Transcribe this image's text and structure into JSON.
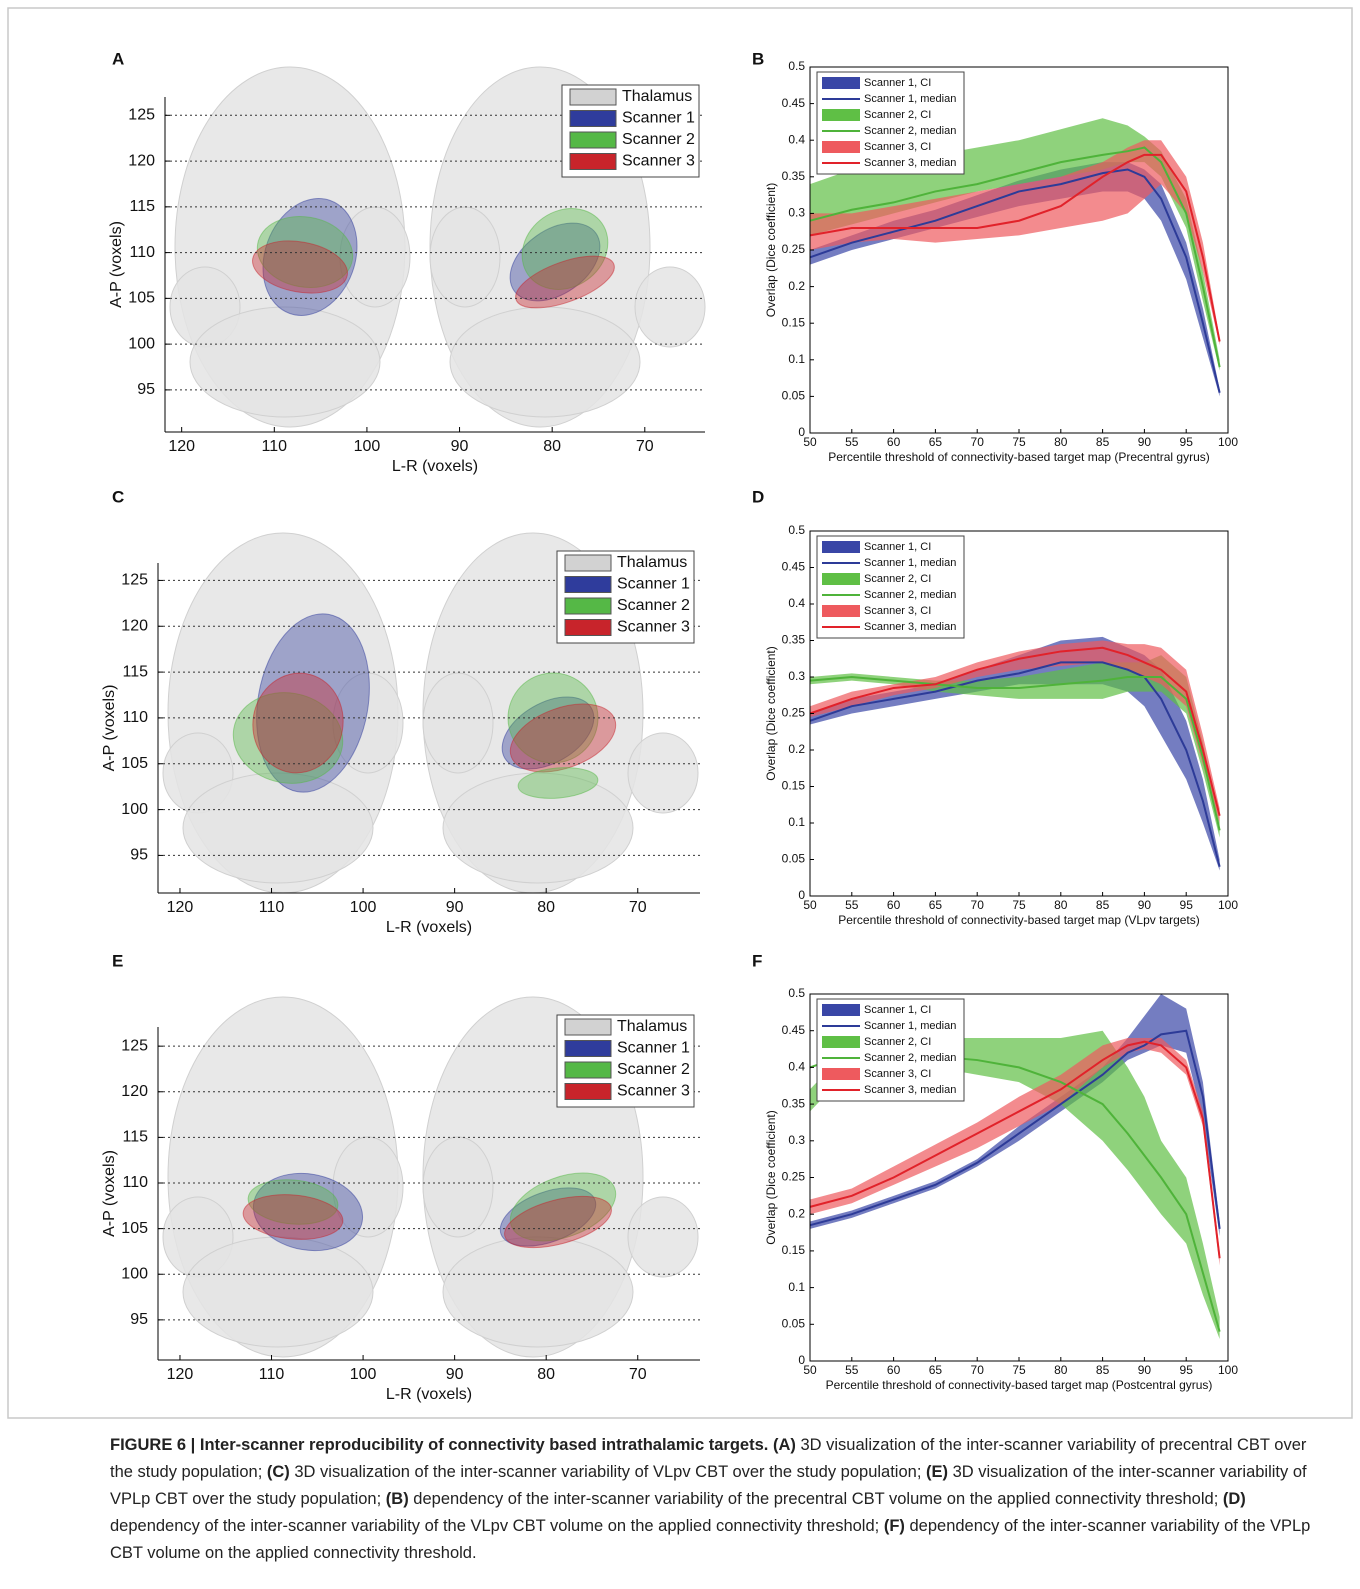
{
  "chart_data": [
    {
      "type": "image",
      "panel": "A",
      "xlabel": "L-R (voxels)",
      "ylabel": "A-P (voxels)",
      "xlim": [
        121.8,
        63.5
      ],
      "ylim": [
        90.4,
        127
      ],
      "xticks": [
        120,
        110,
        100,
        90,
        80,
        70
      ],
      "yticks": [
        95,
        100,
        105,
        110,
        115,
        120,
        125
      ],
      "grid": true,
      "legend_loc": "upper right",
      "series": [
        {
          "name": "Thalamus",
          "color": "#d2d2d2"
        },
        {
          "name": "Scanner 1",
          "color": "#2f3c9c"
        },
        {
          "name": "Scanner 2",
          "color": "#55b846"
        },
        {
          "name": "Scanner 3",
          "color": "#c8242b"
        }
      ]
    },
    {
      "type": "line",
      "panel": "B",
      "xlabel": "Percentile threshold of connectivity-based target map (Precentral gyrus)",
      "ylabel": "Overlap (Dice coefficient)",
      "xlim": [
        50,
        100
      ],
      "ylim": [
        0,
        0.5
      ],
      "xticks": [
        50,
        55,
        60,
        65,
        70,
        75,
        80,
        85,
        90,
        95,
        100
      ],
      "yticks": [
        0,
        0.05,
        0.1,
        0.15,
        0.2,
        0.25,
        0.3,
        0.35,
        0.4,
        0.45,
        0.5
      ],
      "legend_loc": "upper left",
      "x": [
        50,
        55,
        60,
        65,
        70,
        75,
        80,
        85,
        88,
        90,
        92,
        95,
        97,
        99
      ],
      "series": [
        {
          "name": "Scanner 1, CI",
          "color": "#3946a6",
          "lower": [
            0.23,
            0.25,
            0.265,
            0.28,
            0.295,
            0.31,
            0.32,
            0.33,
            0.33,
            0.32,
            0.29,
            0.21,
            0.13,
            0.05
          ],
          "upper": [
            0.25,
            0.27,
            0.29,
            0.305,
            0.325,
            0.345,
            0.36,
            0.37,
            0.37,
            0.36,
            0.34,
            0.26,
            0.17,
            0.06
          ]
        },
        {
          "name": "Scanner 1, median",
          "color": "#2d3b98",
          "values": [
            0.24,
            0.26,
            0.275,
            0.29,
            0.31,
            0.33,
            0.34,
            0.355,
            0.36,
            0.35,
            0.32,
            0.24,
            0.15,
            0.055
          ]
        },
        {
          "name": "Scanner 2, CI",
          "color": "#5fbf45",
          "lower": [
            0.27,
            0.285,
            0.3,
            0.315,
            0.33,
            0.34,
            0.35,
            0.36,
            0.37,
            0.37,
            0.35,
            0.28,
            0.18,
            0.085
          ],
          "upper": [
            0.34,
            0.36,
            0.37,
            0.38,
            0.39,
            0.4,
            0.415,
            0.43,
            0.42,
            0.405,
            0.385,
            0.32,
            0.22,
            0.1
          ]
        },
        {
          "name": "Scanner 2, median",
          "color": "#4fb33a",
          "values": [
            0.29,
            0.305,
            0.315,
            0.33,
            0.34,
            0.355,
            0.37,
            0.38,
            0.385,
            0.39,
            0.37,
            0.3,
            0.2,
            0.09
          ]
        },
        {
          "name": "Scanner 3, CI",
          "color": "#ee5a5e",
          "lower": [
            0.25,
            0.26,
            0.265,
            0.26,
            0.265,
            0.27,
            0.28,
            0.29,
            0.3,
            0.32,
            0.34,
            0.3,
            0.22,
            0.12
          ],
          "upper": [
            0.3,
            0.3,
            0.31,
            0.32,
            0.33,
            0.34,
            0.35,
            0.37,
            0.39,
            0.4,
            0.4,
            0.35,
            0.26,
            0.13
          ]
        },
        {
          "name": "Scanner 3, median",
          "color": "#e1222a",
          "values": [
            0.27,
            0.28,
            0.28,
            0.28,
            0.28,
            0.29,
            0.31,
            0.35,
            0.37,
            0.38,
            0.38,
            0.33,
            0.24,
            0.125
          ]
        }
      ]
    },
    {
      "type": "image",
      "panel": "C",
      "xlabel": "L-R (voxels)",
      "ylabel": "A-P (voxels)",
      "xlim": [
        122.4,
        63.2
      ],
      "ylim": [
        90.9,
        126.9
      ],
      "xticks": [
        120,
        110,
        100,
        90,
        80,
        70
      ],
      "yticks": [
        95,
        100,
        105,
        110,
        115,
        120,
        125
      ],
      "grid": true,
      "legend_loc": "upper right",
      "series": [
        {
          "name": "Thalamus",
          "color": "#d2d2d2"
        },
        {
          "name": "Scanner 1",
          "color": "#2f3c9c"
        },
        {
          "name": "Scanner 2",
          "color": "#55b846"
        },
        {
          "name": "Scanner 3",
          "color": "#c8242b"
        }
      ]
    },
    {
      "type": "line",
      "panel": "D",
      "xlabel": "Percentile threshold of connectivity-based target map (VLpv targets)",
      "ylabel": "Overlap (Dice coefficient)",
      "xlim": [
        50,
        100
      ],
      "ylim": [
        0,
        0.5
      ],
      "xticks": [
        50,
        55,
        60,
        65,
        70,
        75,
        80,
        85,
        90,
        95,
        100
      ],
      "yticks": [
        0,
        0.05,
        0.1,
        0.15,
        0.2,
        0.25,
        0.3,
        0.35,
        0.4,
        0.45,
        0.5
      ],
      "legend_loc": "upper left",
      "x": [
        50,
        55,
        60,
        65,
        70,
        75,
        80,
        85,
        88,
        90,
        92,
        95,
        97,
        99
      ],
      "series": [
        {
          "name": "Scanner 1, CI",
          "color": "#3946a6",
          "lower": [
            0.235,
            0.25,
            0.26,
            0.27,
            0.28,
            0.29,
            0.29,
            0.29,
            0.28,
            0.26,
            0.22,
            0.16,
            0.1,
            0.035
          ],
          "upper": [
            0.25,
            0.27,
            0.28,
            0.29,
            0.31,
            0.33,
            0.35,
            0.355,
            0.34,
            0.33,
            0.31,
            0.24,
            0.16,
            0.05
          ]
        },
        {
          "name": "Scanner 1, median",
          "color": "#2d3b98",
          "values": [
            0.24,
            0.26,
            0.27,
            0.28,
            0.295,
            0.305,
            0.32,
            0.32,
            0.31,
            0.3,
            0.27,
            0.2,
            0.13,
            0.04
          ]
        },
        {
          "name": "Scanner 2, CI",
          "color": "#5fbf45",
          "lower": [
            0.29,
            0.295,
            0.29,
            0.28,
            0.275,
            0.27,
            0.27,
            0.27,
            0.28,
            0.28,
            0.28,
            0.25,
            0.17,
            0.08
          ],
          "upper": [
            0.3,
            0.305,
            0.3,
            0.295,
            0.295,
            0.3,
            0.31,
            0.32,
            0.32,
            0.32,
            0.33,
            0.3,
            0.21,
            0.1
          ]
        },
        {
          "name": "Scanner 2, median",
          "color": "#4fb33a",
          "values": [
            0.295,
            0.3,
            0.295,
            0.29,
            0.285,
            0.285,
            0.29,
            0.295,
            0.3,
            0.3,
            0.3,
            0.27,
            0.19,
            0.09
          ]
        },
        {
          "name": "Scanner 3, CI",
          "color": "#ee5a5e",
          "lower": [
            0.245,
            0.26,
            0.275,
            0.285,
            0.3,
            0.31,
            0.315,
            0.32,
            0.31,
            0.3,
            0.29,
            0.26,
            0.18,
            0.1
          ],
          "upper": [
            0.26,
            0.28,
            0.29,
            0.3,
            0.32,
            0.335,
            0.345,
            0.35,
            0.345,
            0.345,
            0.34,
            0.31,
            0.22,
            0.12
          ]
        },
        {
          "name": "Scanner 3, median",
          "color": "#e1222a",
          "values": [
            0.25,
            0.27,
            0.285,
            0.29,
            0.31,
            0.325,
            0.335,
            0.34,
            0.33,
            0.32,
            0.31,
            0.28,
            0.2,
            0.11
          ]
        }
      ]
    },
    {
      "type": "image",
      "panel": "E",
      "xlabel": "L-R (voxels)",
      "ylabel": "A-P (voxels)",
      "xlim": [
        122.4,
        63.2
      ],
      "ylim": [
        90.6,
        127.1
      ],
      "xticks": [
        120,
        110,
        100,
        90,
        80,
        70
      ],
      "yticks": [
        95,
        100,
        105,
        110,
        115,
        120,
        125
      ],
      "grid": true,
      "legend_loc": "upper right",
      "series": [
        {
          "name": "Thalamus",
          "color": "#d2d2d2"
        },
        {
          "name": "Scanner 1",
          "color": "#2f3c9c"
        },
        {
          "name": "Scanner 2",
          "color": "#55b846"
        },
        {
          "name": "Scanner 3",
          "color": "#c8242b"
        }
      ]
    },
    {
      "type": "line",
      "panel": "F",
      "xlabel": "Percentile threshold of connectivity-based target map (Postcentral gyrus)",
      "ylabel": "Overlap (Dice coefficient)",
      "xlim": [
        50,
        100
      ],
      "ylim": [
        0,
        0.5
      ],
      "xticks": [
        50,
        55,
        60,
        65,
        70,
        75,
        80,
        85,
        90,
        95,
        100
      ],
      "yticks": [
        0,
        0.05,
        0.1,
        0.15,
        0.2,
        0.25,
        0.3,
        0.35,
        0.4,
        0.45,
        0.5
      ],
      "legend_loc": "upper left",
      "x": [
        50,
        55,
        60,
        65,
        70,
        75,
        80,
        85,
        88,
        90,
        92,
        95,
        97,
        99
      ],
      "series": [
        {
          "name": "Scanner 1, CI",
          "color": "#3946a6",
          "lower": [
            0.18,
            0.195,
            0.215,
            0.235,
            0.265,
            0.3,
            0.34,
            0.38,
            0.41,
            0.42,
            0.43,
            0.42,
            0.33,
            0.17
          ],
          "upper": [
            0.19,
            0.205,
            0.225,
            0.245,
            0.275,
            0.32,
            0.36,
            0.4,
            0.44,
            0.47,
            0.5,
            0.48,
            0.38,
            0.19
          ]
        },
        {
          "name": "Scanner 1, median",
          "color": "#2d3b98",
          "values": [
            0.185,
            0.2,
            0.22,
            0.24,
            0.27,
            0.31,
            0.35,
            0.39,
            0.42,
            0.43,
            0.445,
            0.45,
            0.36,
            0.18
          ]
        },
        {
          "name": "Scanner 2, CI",
          "color": "#5fbf45",
          "lower": [
            0.34,
            0.4,
            0.41,
            0.4,
            0.39,
            0.38,
            0.35,
            0.3,
            0.26,
            0.23,
            0.2,
            0.16,
            0.09,
            0.03
          ],
          "upper": [
            0.37,
            0.43,
            0.435,
            0.44,
            0.44,
            0.44,
            0.44,
            0.45,
            0.4,
            0.36,
            0.3,
            0.25,
            0.16,
            0.06
          ]
        },
        {
          "name": "Scanner 2, median",
          "color": "#4fb33a",
          "values": [
            0.4,
            0.42,
            0.42,
            0.415,
            0.41,
            0.4,
            0.38,
            0.35,
            0.31,
            0.28,
            0.25,
            0.2,
            0.12,
            0.04
          ]
        },
        {
          "name": "Scanner 3, CI",
          "color": "#ee5a5e",
          "lower": [
            0.2,
            0.215,
            0.24,
            0.265,
            0.29,
            0.32,
            0.35,
            0.4,
            0.42,
            0.425,
            0.42,
            0.39,
            0.32,
            0.13
          ],
          "upper": [
            0.22,
            0.235,
            0.265,
            0.295,
            0.325,
            0.36,
            0.39,
            0.43,
            0.44,
            0.44,
            0.44,
            0.41,
            0.34,
            0.15
          ]
        },
        {
          "name": "Scanner 3, median",
          "color": "#e1222a",
          "values": [
            0.21,
            0.225,
            0.25,
            0.28,
            0.31,
            0.34,
            0.37,
            0.41,
            0.43,
            0.435,
            0.43,
            0.4,
            0.33,
            0.14
          ]
        }
      ]
    }
  ],
  "caption": {
    "title": "FIGURE 6 | Inter-scanner reproducibility of connectivity based intrathalamic targets.",
    "parts": [
      {
        "ref": "(A)",
        "text": "3D visualization of the inter-scanner variability of precentral CBT over the study population;"
      },
      {
        "ref": "(C)",
        "text": "3D visualization of the inter-scanner variability of VLpv CBT over the study population;"
      },
      {
        "ref": "(E)",
        "text": "3D visualization of the inter-scanner variability of VPLp CBT over the study population;"
      },
      {
        "ref": "(B)",
        "text": "dependency of the inter-scanner variability of the precentral CBT volume on the applied connectivity threshold;"
      },
      {
        "ref": "(D)",
        "text": "dependency of the inter-scanner variability of the VLpv CBT volume on the applied connectivity threshold;"
      },
      {
        "ref": "(F)",
        "text": "dependency of the inter-scanner variability of the VPLp CBT volume on the applied connectivity threshold."
      }
    ]
  }
}
